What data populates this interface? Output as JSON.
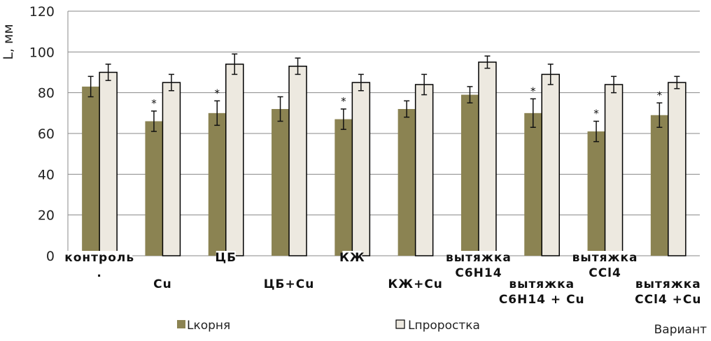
{
  "chart_data": {
    "type": "bar",
    "title": "",
    "ylabel": "L, мм",
    "xlabel": "Вариант",
    "ylim": [
      0,
      120
    ],
    "yticks": [
      0,
      20,
      40,
      60,
      80,
      100,
      120
    ],
    "grid": true,
    "legend_position": "bottom",
    "categories": [
      [
        "контроль",
        "."
      ],
      [
        "Cu"
      ],
      [
        "ЦБ"
      ],
      [
        "ЦБ+Cu"
      ],
      [
        "КЖ"
      ],
      [
        "КЖ+Cu"
      ],
      [
        "вытяжка",
        "C6H14"
      ],
      [
        "вытяжка",
        "C6H14 + Cu"
      ],
      [
        "вытяжка",
        "CCl4"
      ],
      [
        "вытяжка",
        "CCl4 +Cu"
      ]
    ],
    "series": [
      {
        "name": "Lкорня",
        "color": "#8b8352",
        "values": [
          83,
          66,
          70,
          72,
          67,
          72,
          79,
          70,
          61,
          69
        ],
        "errors": [
          5,
          5,
          6,
          6,
          5,
          4,
          4,
          7,
          5,
          6
        ]
      },
      {
        "name": "Lпроростка",
        "color": "#ede9e0",
        "values": [
          90,
          85,
          94,
          93,
          85,
          84,
          95,
          89,
          84,
          85
        ],
        "errors": [
          4,
          4,
          5,
          4,
          4,
          5,
          3,
          5,
          4,
          3
        ]
      }
    ],
    "significance_marker": "*",
    "significant": [
      false,
      true,
      true,
      false,
      true,
      false,
      false,
      true,
      true,
      true
    ]
  }
}
